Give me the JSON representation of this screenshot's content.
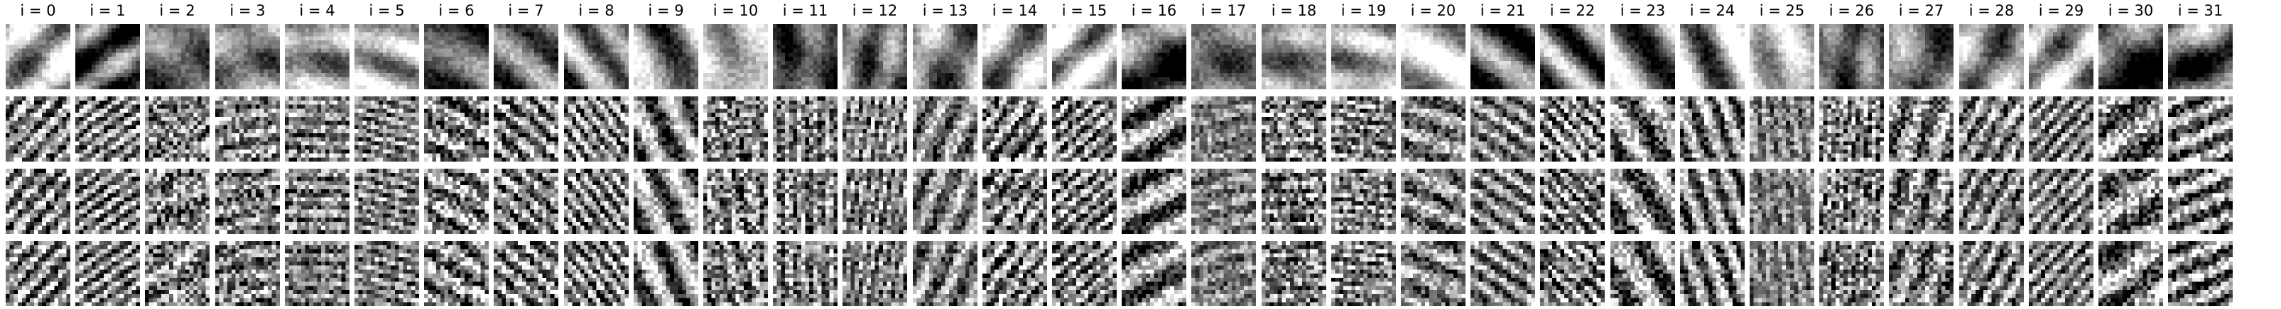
{
  "figure": {
    "column_titles": [
      "i = 0",
      "i = 1",
      "i = 2",
      "i = 3",
      "i = 4",
      "i = 5",
      "i = 6",
      "i = 7",
      "i = 8",
      "i = 9",
      "i = 10",
      "i = 11",
      "i = 12",
      "i = 13",
      "i = 14",
      "i = 15",
      "i = 16",
      "i = 17",
      "i = 18",
      "i = 19",
      "i = 20",
      "i = 21",
      "i = 22",
      "i = 23",
      "i = 24",
      "i = 25",
      "i = 26",
      "i = 27",
      "i = 28",
      "i = 29",
      "i = 30",
      "i = 31"
    ],
    "row_count": 4,
    "colormap": "grayscale",
    "background_color": "#ffffff"
  }
}
